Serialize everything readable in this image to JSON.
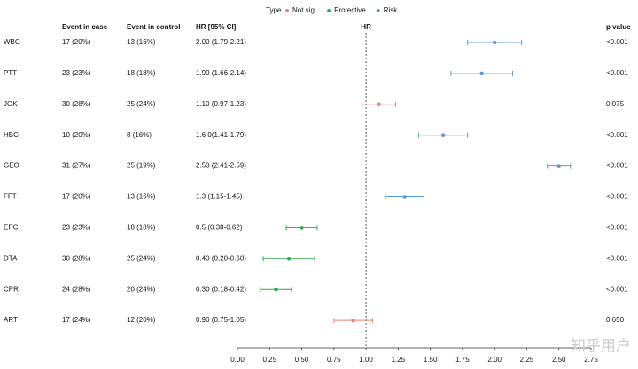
{
  "chart_data": {
    "type": "forest",
    "legend_title": "Type",
    "series": [
      {
        "name": "Not sig.",
        "color": "#e8837b"
      },
      {
        "name": "Protective",
        "color": "#2eab4a"
      },
      {
        "name": "Risk",
        "color": "#5b9bd5"
      }
    ],
    "columns": {
      "case": "Event in case",
      "control": "Event in control",
      "ci": "HR [95% CI]",
      "hr": "HR",
      "p": "p value"
    },
    "rows": [
      {
        "label": "WBC",
        "case": "17 (20%)",
        "control": "13 (16%)",
        "ci": "2.00 (1.79-2.21)",
        "p": "<0.001",
        "hr": 2.0,
        "lo": 1.79,
        "hi": 2.21,
        "type": "Risk"
      },
      {
        "label": "PTT",
        "case": "23 (23%)",
        "control": "18 (18%)",
        "ci": "1.90 (1.66-2.14)",
        "p": "<0.001",
        "hr": 1.9,
        "lo": 1.66,
        "hi": 2.14,
        "type": "Risk"
      },
      {
        "label": "JOK",
        "case": "30 (28%)",
        "control": "25 (24%)",
        "ci": "1.10 (0.97-1.23)",
        "p": "0.075",
        "hr": 1.1,
        "lo": 0.97,
        "hi": 1.23,
        "type": "Not sig."
      },
      {
        "label": "HBC",
        "case": "10 (20%)",
        "control": "8 (16%)",
        "ci": "1.6 0(1.41-1.79)",
        "p": "<0.001",
        "hr": 1.6,
        "lo": 1.41,
        "hi": 1.79,
        "type": "Risk"
      },
      {
        "label": "GEO",
        "case": "31 (27%)",
        "control": "25 (19%)",
        "ci": "2.50 (2.41-2.59)",
        "p": "<0.001",
        "hr": 2.5,
        "lo": 2.41,
        "hi": 2.59,
        "type": "Risk"
      },
      {
        "label": "FFT",
        "case": "17 (20%)",
        "control": "13 (16%)",
        "ci": "1.3 (1.15-1.45)",
        "p": "<0.001",
        "hr": 1.3,
        "lo": 1.15,
        "hi": 1.45,
        "type": "Risk"
      },
      {
        "label": "EPC",
        "case": "23 (23%)",
        "control": "18 (18%)",
        "ci": "0.5 (0.38-0.62)",
        "p": "<0.001",
        "hr": 0.5,
        "lo": 0.38,
        "hi": 0.62,
        "type": "Protective"
      },
      {
        "label": "DTA",
        "case": "30 (28%)",
        "control": "25 (24%)",
        "ci": "0.40 (0.20-0.60)",
        "p": "<0.001",
        "hr": 0.4,
        "lo": 0.2,
        "hi": 0.6,
        "type": "Protective"
      },
      {
        "label": "CPR",
        "case": "24 (28%)",
        "control": "20 (24%)",
        "ci": "0.30 (0.18-0.42)",
        "p": "<0.001",
        "hr": 0.3,
        "lo": 0.18,
        "hi": 0.42,
        "type": "Protective"
      },
      {
        "label": "ART",
        "case": "17 (24%)",
        "control": "12 (20%)",
        "ci": "0.90 (0.75-1.05)",
        "p": "0.650",
        "hr": 0.9,
        "lo": 0.75,
        "hi": 1.05,
        "type": "Not sig."
      }
    ],
    "reference": 1,
    "xlim": [
      0,
      2.75
    ],
    "xticks": [
      {
        "value": 0,
        "label": "0.00"
      },
      {
        "value": 0.25,
        "label": "0.25"
      },
      {
        "value": 0.5,
        "label": "0.50"
      },
      {
        "value": 0.75,
        "label": "0.75"
      },
      {
        "value": 1,
        "label": "1.00"
      },
      {
        "value": 1.25,
        "label": "1.25"
      },
      {
        "value": 1.5,
        "label": "1.50"
      },
      {
        "value": 1.75,
        "label": "1.75"
      },
      {
        "value": 2,
        "label": "2.00"
      },
      {
        "value": 2.25,
        "label": "2.25"
      },
      {
        "value": 2.5,
        "label": "2.50"
      },
      {
        "value": 2.75,
        "label": "2.75"
      }
    ],
    "watermark": "知乎用户"
  }
}
